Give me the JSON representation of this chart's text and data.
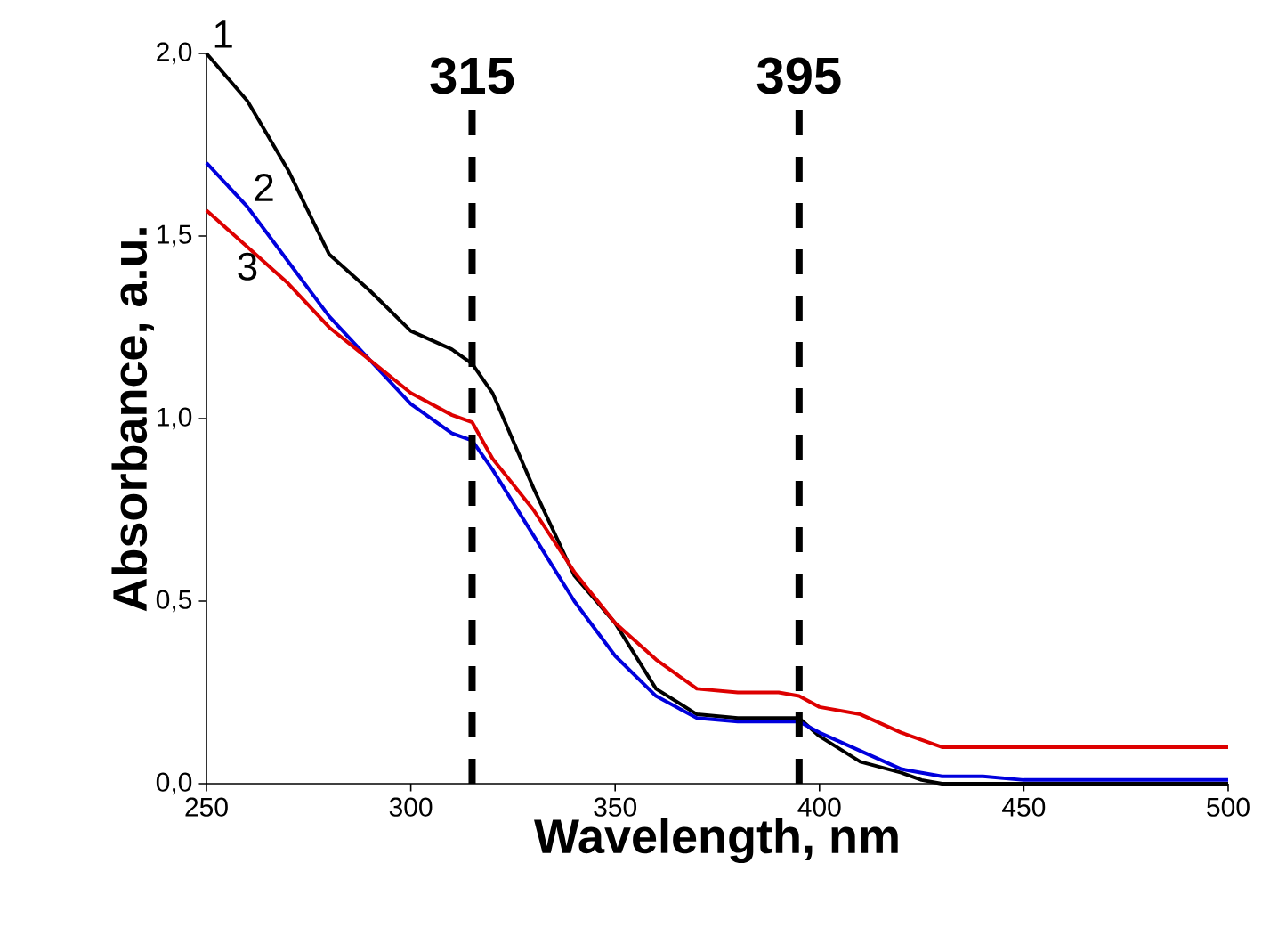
{
  "chart_data": {
    "type": "line",
    "xlabel": "Wavelength, nm",
    "ylabel": "Absorbance, a.u.",
    "x": [
      250,
      260,
      270,
      280,
      290,
      300,
      310,
      315,
      320,
      330,
      340,
      350,
      360,
      370,
      380,
      390,
      395,
      400,
      410,
      420,
      425,
      430,
      440,
      450,
      500
    ],
    "series": [
      {
        "name": "1",
        "color": "#000000",
        "values": [
          2.0,
          1.87,
          1.68,
          1.45,
          1.35,
          1.24,
          1.19,
          1.15,
          1.07,
          0.81,
          0.57,
          0.44,
          0.26,
          0.19,
          0.18,
          0.18,
          0.18,
          0.13,
          0.06,
          0.03,
          0.01,
          0.0,
          0.0,
          0.0,
          0.0
        ]
      },
      {
        "name": "2",
        "color": "#0000dd",
        "values": [
          1.7,
          1.58,
          1.43,
          1.28,
          1.16,
          1.04,
          0.96,
          0.94,
          0.86,
          0.68,
          0.5,
          0.35,
          0.24,
          0.18,
          0.17,
          0.17,
          0.17,
          0.14,
          0.09,
          0.04,
          0.03,
          0.02,
          0.02,
          0.01,
          0.01
        ]
      },
      {
        "name": "3",
        "color": "#dd0000",
        "values": [
          1.57,
          1.47,
          1.37,
          1.25,
          1.16,
          1.07,
          1.01,
          0.99,
          0.89,
          0.75,
          0.58,
          0.44,
          0.34,
          0.26,
          0.25,
          0.25,
          0.24,
          0.21,
          0.19,
          0.14,
          0.12,
          0.1,
          0.1,
          0.1,
          0.1
        ]
      }
    ],
    "xlim": [
      250,
      500
    ],
    "ylim": [
      0,
      2.0
    ],
    "xticks": [
      250,
      300,
      350,
      400,
      450,
      500
    ],
    "yticks": [
      {
        "value": 0,
        "label": "0,0"
      },
      {
        "value": 0.5,
        "label": "0,5"
      },
      {
        "value": 1.0,
        "label": "1,0"
      },
      {
        "value": 1.5,
        "label": "1,5"
      },
      {
        "value": 2.0,
        "label": "2,0"
      }
    ],
    "ref_lines": [
      {
        "axis": "x",
        "value": 315,
        "label": "315",
        "color": "#000000",
        "line_style": "dashed"
      },
      {
        "axis": "x",
        "value": 395,
        "label": "395",
        "color": "#000000",
        "line_style": "dashed"
      }
    ],
    "grid": false,
    "legend": false,
    "line_style": "solid",
    "marker": "none"
  }
}
